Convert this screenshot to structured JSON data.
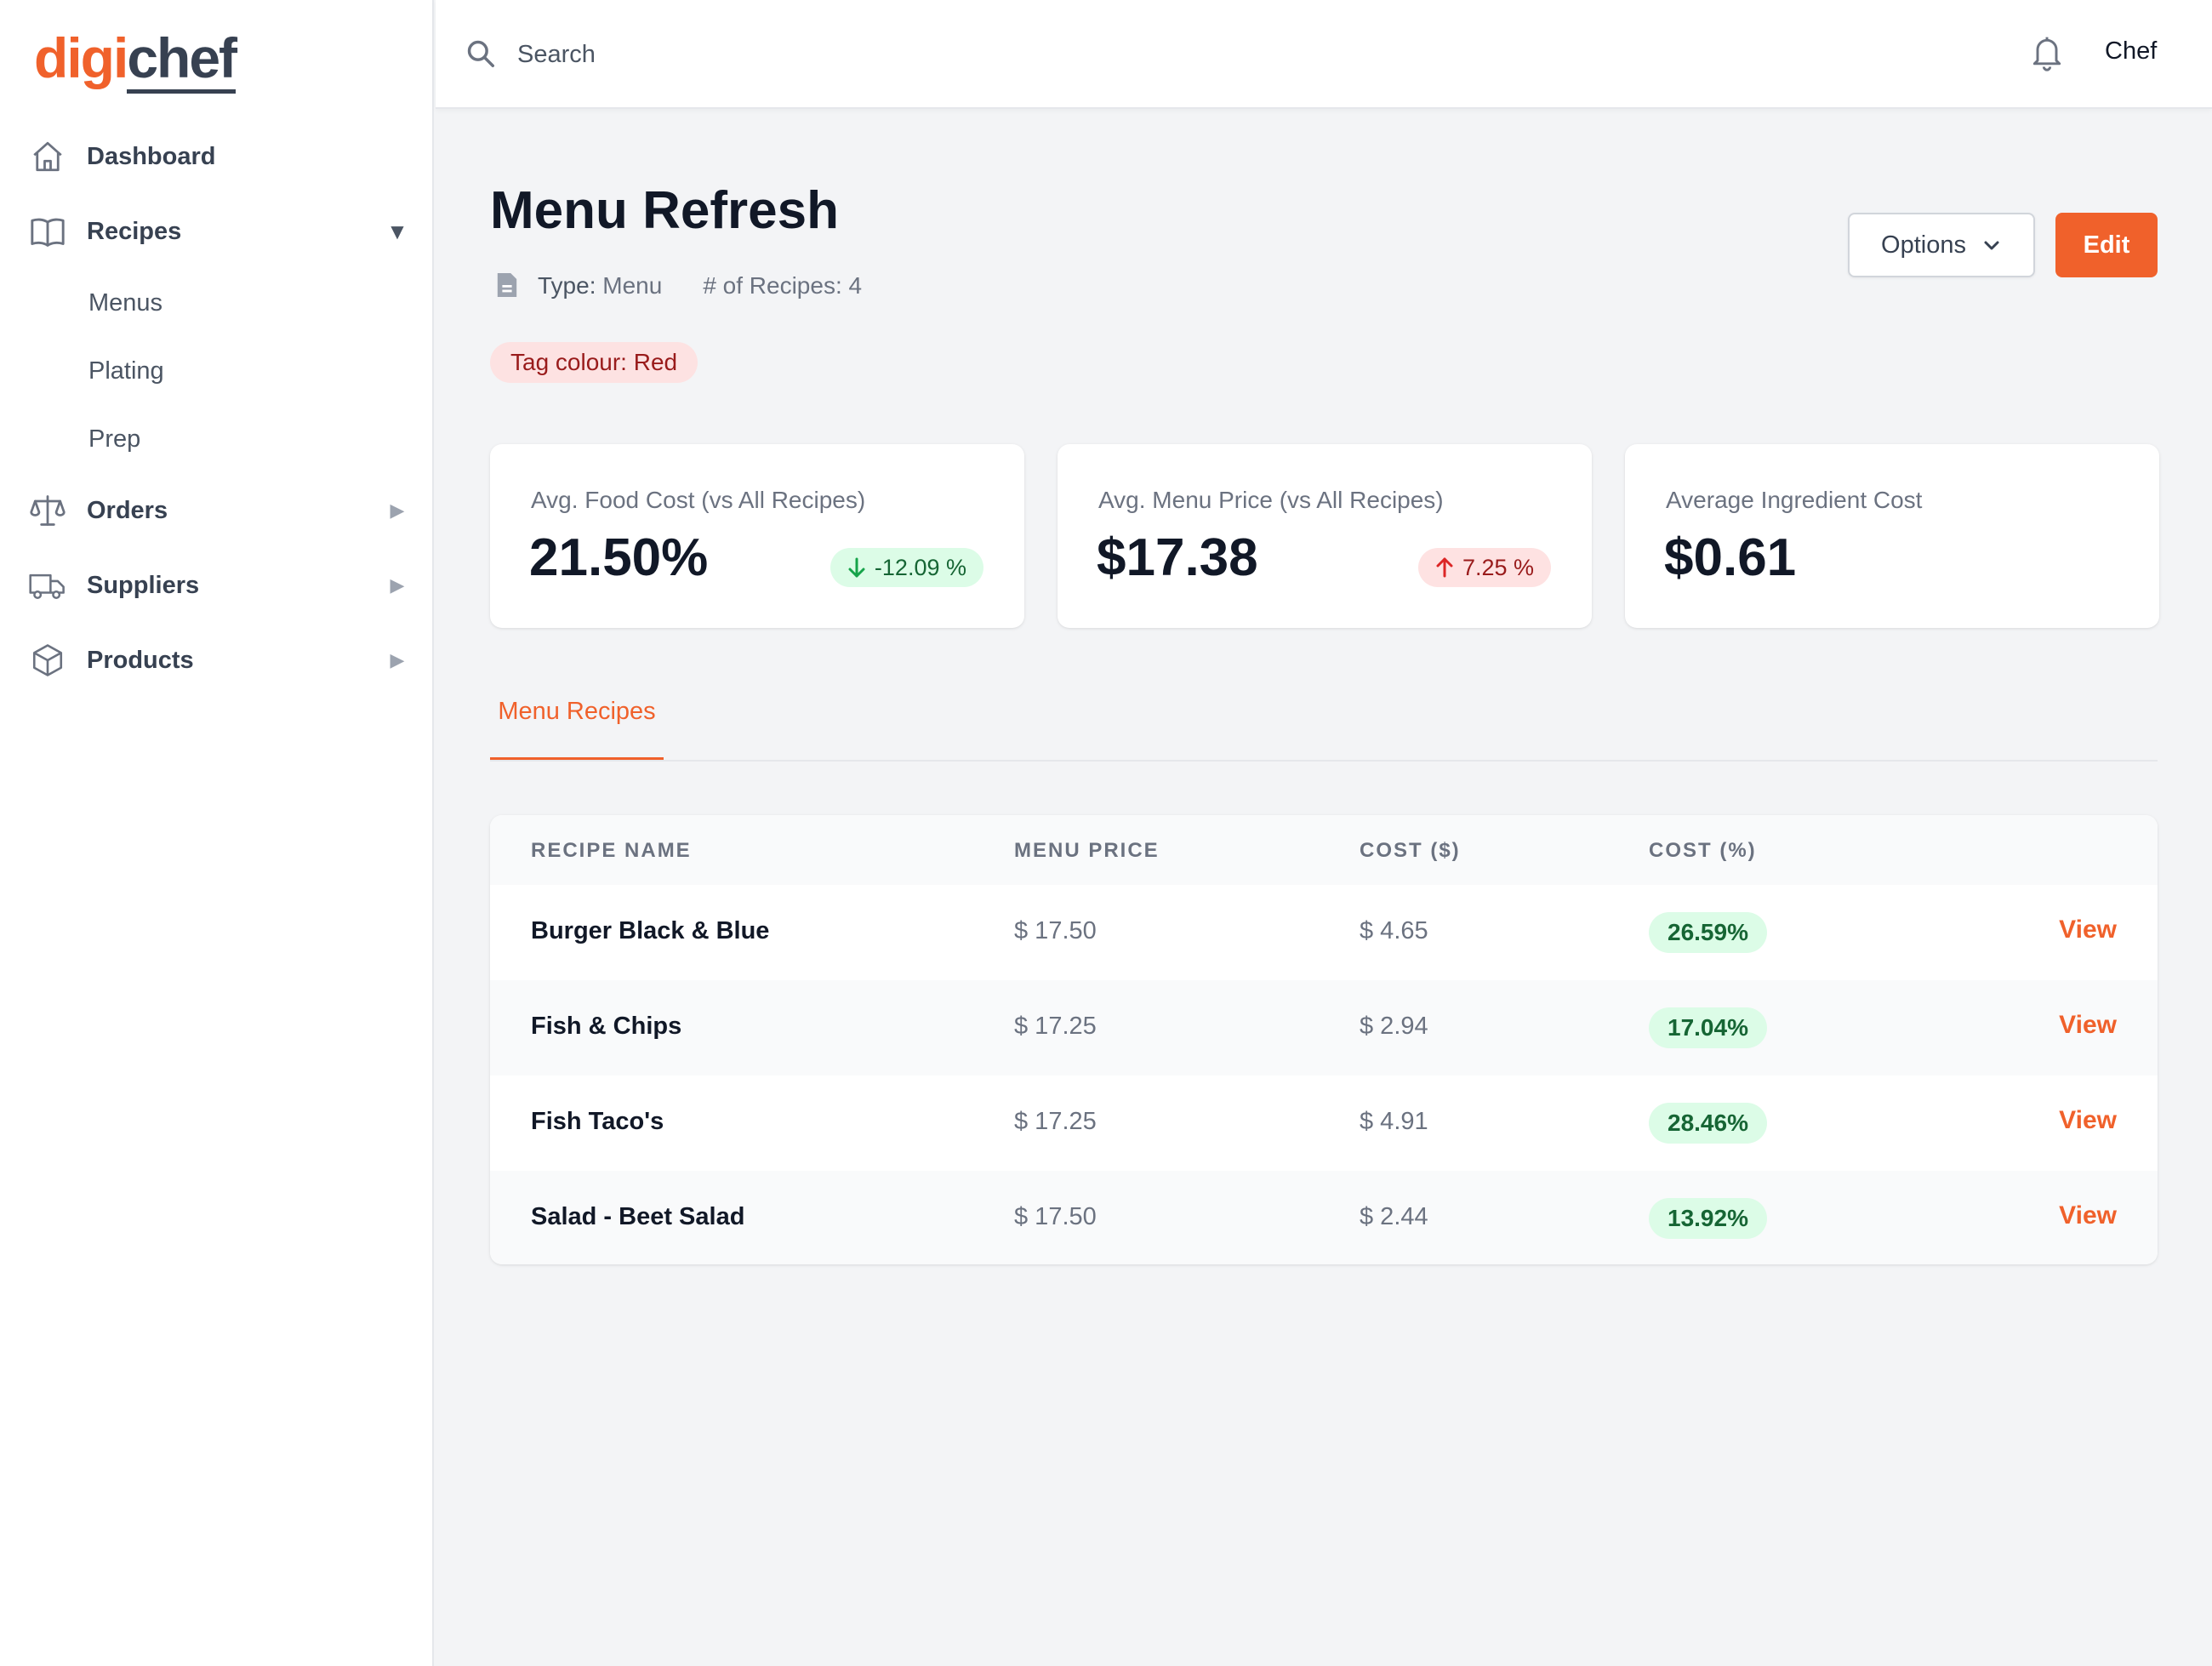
{
  "brand": {
    "part1": "digi",
    "part2": "chef",
    "accent": "#f0612b"
  },
  "sidebar": {
    "items": [
      {
        "label": "Dashboard",
        "icon": "home-icon"
      },
      {
        "label": "Recipes",
        "icon": "book-icon",
        "caret": "▼"
      },
      {
        "label": "Orders",
        "icon": "scale-icon",
        "caret": "▶"
      },
      {
        "label": "Suppliers",
        "icon": "truck-icon",
        "caret": "▶"
      },
      {
        "label": "Products",
        "icon": "cube-icon",
        "caret": "▶"
      }
    ],
    "recipes_sub": [
      "Menus",
      "Plating",
      "Prep"
    ]
  },
  "topbar": {
    "search_placeholder": "Search",
    "user": "Chef"
  },
  "page": {
    "title": "Menu Refresh",
    "type_key": "Type:",
    "type_value": "Menu",
    "recipes_count_label": "# of Recipes: 4",
    "tag": "Tag colour: Red",
    "options_label": "Options",
    "edit_label": "Edit"
  },
  "stats": [
    {
      "label": "Avg. Food Cost (vs All Recipes)",
      "value": "21.50%",
      "delta": "-12.09 %",
      "direction": "down"
    },
    {
      "label": "Avg. Menu Price (vs All Recipes)",
      "value": "$17.38",
      "delta": "7.25 %",
      "direction": "up"
    },
    {
      "label": "Average Ingredient Cost",
      "value": "$0.61"
    }
  ],
  "tabs": [
    {
      "label": "Menu Recipes",
      "active": true
    }
  ],
  "table": {
    "columns": [
      "Recipe Name",
      "Menu Price",
      "Cost ($)",
      "Cost (%)"
    ],
    "rows": [
      {
        "name": "Burger Black & Blue",
        "price": "$ 17.50",
        "cost": "$ 4.65",
        "pct": "26.59%",
        "action": "View"
      },
      {
        "name": "Fish & Chips",
        "price": "$ 17.25",
        "cost": "$ 2.94",
        "pct": "17.04%",
        "action": "View"
      },
      {
        "name": "Fish Taco's",
        "price": "$ 17.25",
        "cost": "$ 4.91",
        "pct": "28.46%",
        "action": "View"
      },
      {
        "name": "Salad - Beet Salad",
        "price": "$ 17.50",
        "cost": "$ 2.44",
        "pct": "13.92%",
        "action": "View"
      }
    ]
  }
}
